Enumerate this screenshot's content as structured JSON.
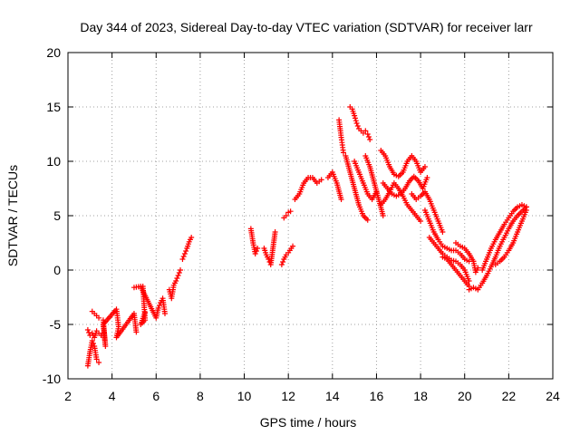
{
  "chart_data": {
    "type": "scatter",
    "title": "Day 344 of 2023, Sidereal Day-to-day VTEC variation (SDTVAR) for receiver larr",
    "xlabel": "GPS time / hours",
    "ylabel": "SDTVAR / TECUs",
    "xlim": [
      2,
      24
    ],
    "ylim": [
      -10,
      20
    ],
    "xticks": [
      "2",
      "4",
      "6",
      "8",
      "10",
      "12",
      "14",
      "16",
      "18",
      "20",
      "22",
      "24"
    ],
    "yticks": [
      "-10",
      "-5",
      "0",
      "5",
      "10",
      "15",
      "20"
    ],
    "grid": true,
    "marker": "+",
    "color": "#ff0000",
    "segments": [
      {
        "x": [
          2.9,
          3.0,
          3.1,
          3.2,
          3.3,
          3.4
        ],
        "y": [
          -8.8,
          -7.5,
          -6.5,
          -7.0,
          -8.2,
          -8.5
        ]
      },
      {
        "x": [
          2.9,
          3.0,
          3.1,
          3.2,
          3.3,
          3.4,
          3.5
        ],
        "y": [
          -5.5,
          -6.0,
          -5.8,
          -6.2,
          -5.6,
          -5.8,
          -6.0
        ]
      },
      {
        "x": [
          3.1,
          3.2,
          3.3,
          3.4
        ],
        "y": [
          -3.8,
          -4.0,
          -4.2,
          -4.4
        ]
      },
      {
        "x": [
          3.6,
          3.7,
          3.6,
          4.2,
          4.3,
          4.2,
          5.0,
          5.1,
          5.4,
          5.5,
          5.3,
          5.5
        ],
        "y": [
          -4.6,
          -7.0,
          -5.0,
          -3.6,
          -5.2,
          -6.2,
          -4.0,
          -5.7,
          -1.5,
          -4.6,
          -5.0,
          -3.9
        ]
      },
      {
        "x": [
          5.0,
          5.3,
          6.0,
          6.1,
          6.2,
          6.3,
          6.4
        ],
        "y": [
          -1.6,
          -1.5,
          -4.4,
          -3.5,
          -3.0,
          -2.6,
          -4.0
        ]
      },
      {
        "x": [
          6.6,
          6.7,
          6.8,
          6.9,
          7.0,
          7.1
        ],
        "y": [
          -1.8,
          -2.6,
          -1.4,
          -1.0,
          -0.5,
          0.0
        ]
      },
      {
        "x": [
          7.2,
          7.3,
          7.4,
          7.5,
          7.6
        ],
        "y": [
          1.0,
          1.5,
          2.0,
          2.6,
          3.0
        ]
      },
      {
        "x": [
          10.3,
          10.4,
          10.5,
          10.6
        ],
        "y": [
          3.8,
          2.5,
          1.5,
          2.0
        ]
      },
      {
        "x": [
          10.9,
          11.0,
          11.1,
          11.2,
          11.3,
          11.4
        ],
        "y": [
          2.0,
          1.4,
          1.0,
          0.5,
          2.0,
          3.5
        ]
      },
      {
        "x": [
          11.7,
          11.8,
          11.9,
          12.0,
          12.2
        ],
        "y": [
          0.5,
          1.0,
          1.4,
          1.6,
          2.2
        ]
      },
      {
        "x": [
          11.8,
          11.9,
          12.0,
          12.1
        ],
        "y": [
          4.8,
          5.0,
          5.3,
          5.4
        ]
      },
      {
        "x": [
          12.3,
          12.5,
          12.7,
          12.9,
          13.1,
          13.3,
          13.5
        ],
        "y": [
          6.5,
          7.0,
          8.0,
          8.5,
          8.5,
          8.0,
          8.3
        ]
      },
      {
        "x": [
          13.8,
          14.0,
          14.2,
          14.4
        ],
        "y": [
          8.5,
          9.0,
          8.0,
          6.5
        ]
      },
      {
        "x": [
          14.3,
          14.35,
          14.4,
          14.45,
          14.5
        ],
        "y": [
          13.8,
          13.0,
          12.2,
          11.5,
          10.8
        ]
      },
      {
        "x": [
          14.8,
          14.9,
          15.0,
          15.1,
          15.2,
          15.3,
          15.4,
          15.5,
          15.6,
          15.7
        ],
        "y": [
          15.0,
          14.8,
          14.2,
          13.5,
          13.0,
          12.8,
          12.6,
          12.8,
          12.5,
          12.0
        ]
      },
      {
        "x": [
          14.6,
          14.8,
          15.0,
          15.2,
          15.4,
          15.6
        ],
        "y": [
          10.5,
          9.0,
          7.5,
          6.0,
          5.0,
          4.6
        ]
      },
      {
        "x": [
          15.0,
          15.2,
          15.4,
          15.6,
          15.8,
          16.0
        ],
        "y": [
          10.0,
          9.0,
          8.0,
          7.0,
          6.5,
          7.2
        ]
      },
      {
        "x": [
          15.5,
          15.7,
          15.9,
          16.1,
          16.3
        ],
        "y": [
          10.5,
          9.5,
          8.0,
          6.5,
          5.0
        ]
      },
      {
        "x": [
          16.2,
          16.4,
          16.6,
          16.8,
          17.0,
          17.2,
          17.4,
          17.6,
          17.8,
          18.0,
          18.2
        ],
        "y": [
          11.0,
          10.5,
          9.5,
          8.8,
          8.6,
          9.0,
          10.0,
          10.5,
          10.0,
          9.0,
          9.5
        ]
      },
      {
        "x": [
          16.3,
          16.5,
          16.7,
          16.9,
          17.1,
          17.3,
          17.5,
          17.7,
          17.9,
          18.1,
          18.3
        ],
        "y": [
          8.0,
          7.5,
          7.0,
          6.8,
          7.0,
          7.5,
          8.2,
          8.6,
          8.2,
          7.5,
          8.5
        ]
      },
      {
        "x": [
          16.2,
          16.4,
          16.6,
          16.8,
          17.0,
          17.2,
          17.4,
          17.6,
          17.8,
          18.0
        ],
        "y": [
          6.0,
          6.5,
          7.2,
          8.0,
          7.5,
          6.8,
          6.0,
          5.5,
          5.0,
          4.5
        ]
      },
      {
        "x": [
          17.6,
          17.8,
          18.0,
          18.2,
          18.4,
          18.6,
          18.8,
          19.0
        ],
        "y": [
          7.0,
          6.5,
          6.8,
          7.2,
          6.5,
          5.5,
          4.5,
          3.5
        ]
      },
      {
        "x": [
          18.2,
          18.4,
          18.6,
          18.8,
          19.0,
          19.2,
          19.4,
          19.6,
          19.8,
          20.0,
          20.2
        ],
        "y": [
          5.5,
          4.5,
          3.5,
          2.8,
          2.2,
          2.0,
          1.8,
          1.8,
          1.5,
          1.0,
          0.8
        ]
      },
      {
        "x": [
          18.4,
          18.6,
          18.8,
          19.0,
          19.2,
          19.4,
          19.6,
          19.8,
          20.0,
          20.2
        ],
        "y": [
          3.0,
          2.5,
          2.0,
          1.5,
          1.2,
          0.9,
          0.8,
          0.5,
          0.0,
          -1.0
        ]
      },
      {
        "x": [
          19.0,
          19.2,
          19.4,
          19.6,
          19.8,
          20.0,
          20.2
        ],
        "y": [
          1.2,
          1.0,
          0.5,
          0.0,
          -0.5,
          -1.0,
          -1.5
        ]
      },
      {
        "x": [
          19.6,
          19.8,
          20.0,
          20.2,
          20.4
        ],
        "y": [
          2.5,
          2.2,
          2.0,
          1.5,
          0.8
        ]
      },
      {
        "x": [
          20.2,
          20.4,
          20.6,
          20.8,
          21.0,
          21.2,
          21.4,
          21.6,
          21.8,
          22.0,
          22.2,
          22.4,
          22.6,
          22.8
        ],
        "y": [
          -1.8,
          -1.6,
          -1.8,
          -1.2,
          -0.5,
          0.3,
          1.2,
          2.2,
          3.0,
          3.8,
          4.5,
          5.0,
          5.4,
          5.8
        ]
      },
      {
        "x": [
          20.8,
          21.0,
          21.2,
          21.4,
          21.6,
          21.8,
          22.0,
          22.2,
          22.4,
          22.6,
          22.8
        ],
        "y": [
          0.0,
          1.0,
          2.0,
          2.8,
          3.5,
          4.2,
          4.8,
          5.4,
          5.8,
          6.0,
          5.8
        ]
      },
      {
        "x": [
          21.4,
          21.6,
          21.8,
          22.0,
          22.2,
          22.4,
          22.6,
          22.8
        ],
        "y": [
          0.5,
          0.8,
          1.2,
          1.8,
          2.5,
          3.5,
          4.5,
          5.5
        ]
      },
      {
        "x": [
          20.4,
          20.5,
          20.6
        ],
        "y": [
          0.8,
          -0.2,
          0.2
        ]
      }
    ]
  }
}
